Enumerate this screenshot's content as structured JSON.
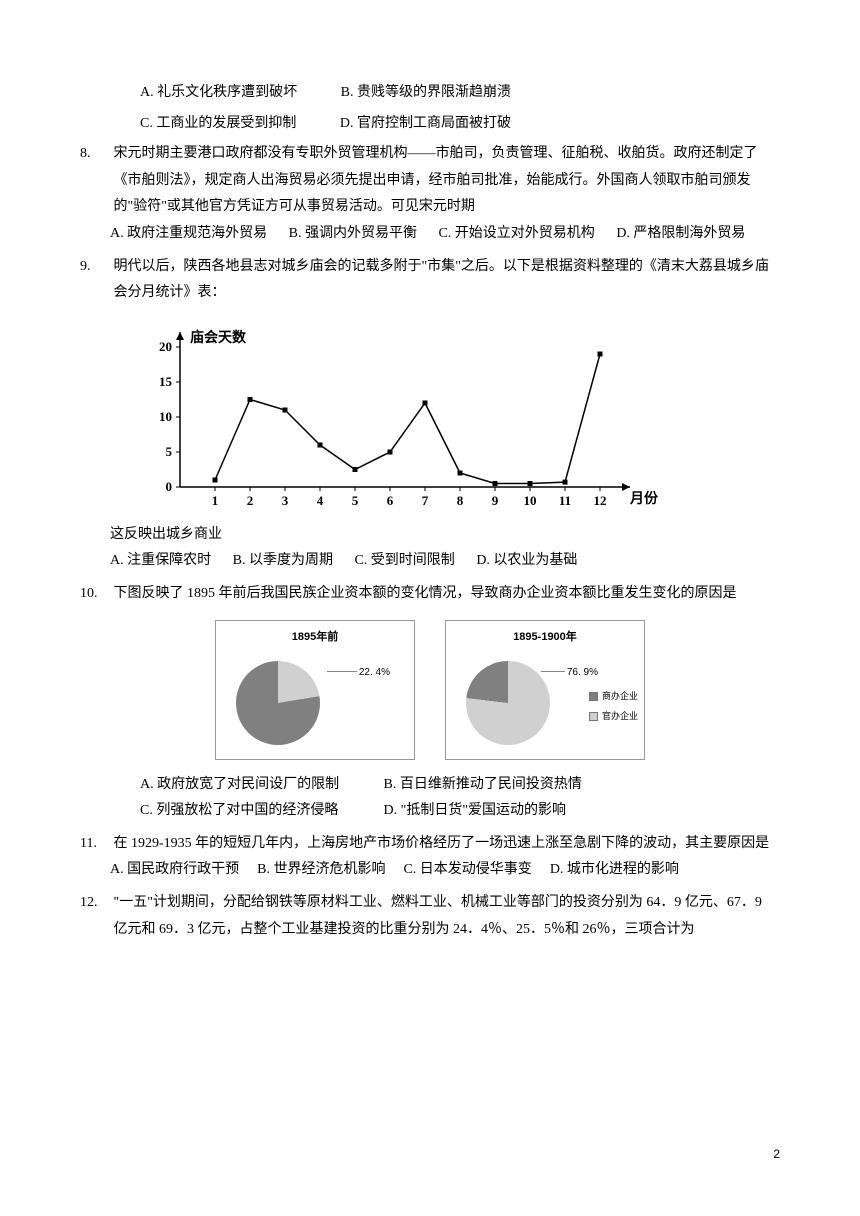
{
  "q7_options": {
    "a": "A. 礼乐文化秩序遭到破坏",
    "b": "B. 贵贱等级的界限渐趋崩溃",
    "c": "C. 工商业的发展受到抑制",
    "d": "D. 官府控制工商局面被打破"
  },
  "q8": {
    "num": "8.",
    "text": "宋元时期主要港口政府都没有专职外贸管理机构——市舶司，负责管理、征舶税、收舶货。政府还制定了《市舶则法》，规定商人出海贸易必须先提出申请，经市舶司批准，始能成行。外国商人领取市舶司颁发的\"验符\"或其他官方凭证方可从事贸易活动。可见宋元时期",
    "options": {
      "a": "A. 政府注重规范海外贸易",
      "b": "B. 强调内外贸易平衡",
      "c": "C. 开始设立对外贸易机构",
      "d": "D. 严格限制海外贸易"
    }
  },
  "q9": {
    "num": "9.",
    "text": "明代以后，陕西各地县志对城乡庙会的记载多附于\"市集\"之后。以下是根据资料整理的《清末大荔县城乡庙会分月统计》表：",
    "chart": {
      "y_label": "庙会天数",
      "x_label": "月份",
      "y_ticks": [
        0,
        5,
        10,
        15,
        20
      ],
      "x_ticks": [
        0,
        1,
        2,
        3,
        4,
        5,
        6,
        7,
        8,
        9,
        10,
        11,
        12
      ],
      "data": [
        1,
        12.5,
        11,
        6,
        2.5,
        5,
        12,
        2,
        0.5,
        0.5,
        0.7,
        19
      ],
      "marker": "square",
      "line_color": "#000000",
      "marker_fill": "#000000",
      "marker_size": 5,
      "line_width": 1.5
    },
    "conclusion": "这反映出城乡商业",
    "options": {
      "a": "A. 注重保障农时",
      "b": "B. 以季度为周期",
      "c": "C. 受到时间限制",
      "d": "D. 以农业为基础"
    }
  },
  "q10": {
    "num": "10.",
    "text": "下图反映了 1895 年前后我国民族企业资本额的变化情况，导致商办企业资本额比重发生变化的原因是",
    "pie1": {
      "title": "1895年前",
      "pct": "22. 4%",
      "value": 22.4,
      "colors": {
        "main": "#808080",
        "slice": "#d0d0d0"
      }
    },
    "pie2": {
      "title": "1895-1900年",
      "pct": "76. 9%",
      "value": 76.9,
      "colors": {
        "main": "#d0d0d0",
        "slice": "#808080"
      }
    },
    "legend": {
      "item1": "商办企业",
      "item2": "官办企业",
      "color1": "#808080",
      "color2": "#d0d0d0"
    },
    "options": {
      "a": "A. 政府放宽了对民间设厂的限制",
      "b": "B. 百日维新推动了民间投资热情",
      "c": "C. 列强放松了对中国的经济侵略",
      "d": "D. \"抵制日货\"爱国运动的影响"
    }
  },
  "q11": {
    "num": "11.",
    "text": "在 1929-1935 年的短短几年内，上海房地产市场价格经历了一场迅速上涨至急剧下降的波动，其主要原因是",
    "options": {
      "a": "A. 国民政府行政干预",
      "b": "B. 世界经济危机影响",
      "c": "C. 日本发动侵华事变",
      "d": "D. 城市化进程的影响"
    }
  },
  "q12": {
    "num": "12.",
    "text": "\"一五\"计划期间，分配给钢铁等原材料工业、燃料工业、机械工业等部门的投资分别为 64．9 亿元、67．9 亿元和 69．3 亿元，占整个工业基建投资的比重分别为 24．4％、25．5％和 26％，三项合计为"
  },
  "page": "2"
}
